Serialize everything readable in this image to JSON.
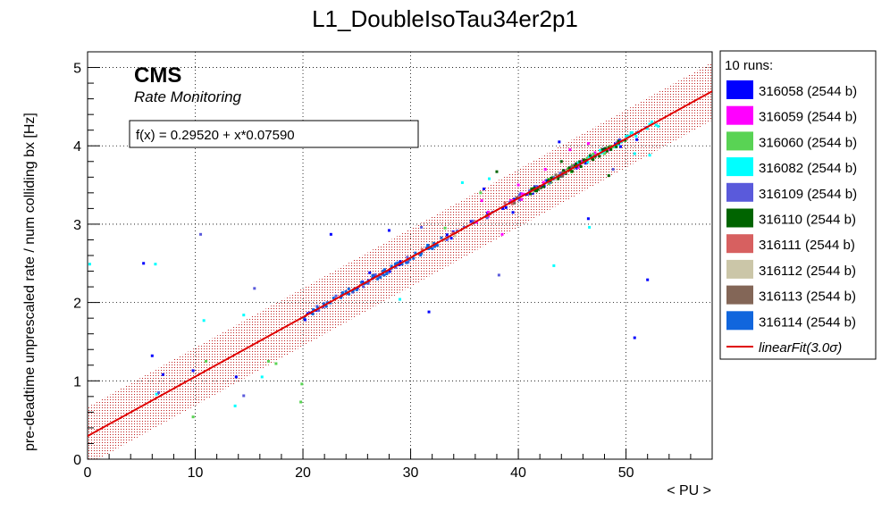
{
  "chart_data": {
    "type": "scatter",
    "title": "L1_DoubleIsoTau34er2p1",
    "xlabel": "< PU >",
    "ylabel": "pre-deadtime unprescaled rate / num colliding bx [Hz]",
    "xlim": [
      0,
      58
    ],
    "ylim": [
      0,
      5.2
    ],
    "x_ticks": [
      0,
      10,
      20,
      30,
      40,
      50
    ],
    "y_ticks": [
      0,
      1,
      2,
      3,
      4,
      5
    ],
    "grid": true,
    "legend_position": "right-outside",
    "cms_label": "CMS",
    "cms_sublabel": "Rate Monitoring",
    "fit_text": "f(x) = 0.29520 + x*0.07590",
    "fit": {
      "intercept": 0.2952,
      "slope": 0.0759,
      "band_sigma": 3.0,
      "band_halfwidth": 0.37,
      "x_range": [
        0,
        58
      ],
      "color": "#e00000"
    },
    "legend_header": "10 runs:",
    "fit_legend_label": "linearFit(3.0σ)",
    "series": [
      {
        "name": "316058 (2544 b)",
        "color": "#0000ff",
        "points": [
          [
            5.2,
            2.5
          ],
          [
            6.0,
            1.32
          ],
          [
            7.0,
            1.08
          ],
          [
            9.8,
            1.13
          ],
          [
            13.8,
            1.05
          ],
          [
            22.6,
            2.87
          ],
          [
            26.2,
            2.38
          ],
          [
            28.0,
            2.92
          ],
          [
            31.7,
            1.88
          ],
          [
            36.8,
            3.45
          ],
          [
            39.5,
            3.15
          ],
          [
            43.8,
            4.05
          ],
          [
            46.5,
            3.07
          ],
          [
            49.5,
            3.99
          ],
          [
            51.0,
            4.08
          ],
          [
            50.8,
            1.55
          ],
          [
            52.0,
            2.29
          ],
          [
            20.2,
            1.78
          ],
          [
            21.2,
            1.9
          ]
        ],
        "cloud": [
          20.0,
          52.0,
          50
        ]
      },
      {
        "name": "316059 (2544 b)",
        "color": "#ff00ff",
        "points": [
          [
            36.6,
            3.3
          ],
          [
            38.5,
            2.87
          ],
          [
            40.0,
            3.5
          ],
          [
            42.5,
            3.7
          ],
          [
            44.8,
            3.95
          ],
          [
            46.5,
            4.03
          ],
          [
            48.5,
            3.95
          ]
        ],
        "cloud": [
          36.0,
          50.0,
          22
        ]
      },
      {
        "name": "316060 (2544 b)",
        "color": "#59d354",
        "points": [
          [
            9.8,
            0.54
          ],
          [
            11.0,
            1.25
          ],
          [
            16.8,
            1.25
          ],
          [
            17.5,
            1.22
          ],
          [
            19.8,
            0.73
          ],
          [
            19.9,
            0.96
          ],
          [
            33.2,
            2.95
          ],
          [
            36.5,
            3.4
          ],
          [
            48.0,
            3.9
          ]
        ],
        "cloud": [
          42.0,
          50.5,
          22
        ]
      },
      {
        "name": "316082 (2544 b)",
        "color": "#00ffff",
        "points": [
          [
            0.2,
            2.49
          ],
          [
            6.3,
            2.49
          ],
          [
            6.4,
            0.83
          ],
          [
            10.8,
            1.77
          ],
          [
            13.7,
            0.68
          ],
          [
            14.5,
            1.84
          ],
          [
            16.2,
            1.05
          ],
          [
            29.0,
            2.04
          ],
          [
            34.8,
            3.53
          ],
          [
            37.3,
            3.58
          ],
          [
            43.3,
            2.47
          ],
          [
            46.6,
            2.96
          ],
          [
            50.8,
            3.9
          ],
          [
            52.2,
            3.88
          ],
          [
            53.0,
            4.25
          ]
        ],
        "cloud": [
          44.0,
          53.0,
          28
        ]
      },
      {
        "name": "316109 (2544 b)",
        "color": "#5a5adb",
        "points": [
          [
            10.5,
            2.87
          ],
          [
            15.5,
            2.18
          ],
          [
            14.5,
            0.81
          ],
          [
            6.6,
            0.85
          ],
          [
            38.2,
            2.35
          ],
          [
            31.0,
            2.96
          ],
          [
            48.8,
            3.7
          ]
        ],
        "cloud": [
          20.0,
          50.0,
          45
        ]
      },
      {
        "name": "316110 (2544 b)",
        "color": "#006400",
        "points": [
          [
            38.0,
            3.67
          ],
          [
            48.4,
            3.62
          ],
          [
            44.0,
            3.8
          ]
        ],
        "cloud": [
          41.0,
          50.0,
          45
        ]
      },
      {
        "name": "316111 (2544 b)",
        "color": "#d76060",
        "points": [],
        "cloud": [
          25.0,
          40.0,
          10
        ]
      },
      {
        "name": "316112 (2544 b)",
        "color": "#cbc6a8",
        "points": [],
        "cloud": [
          30.0,
          45.0,
          10
        ]
      },
      {
        "name": "316113 (2544 b)",
        "color": "#836657",
        "points": [],
        "cloud": [
          33.0,
          48.0,
          10
        ]
      },
      {
        "name": "316114 (2544 b)",
        "color": "#1166dd",
        "points": [],
        "cloud": [
          20.0,
          33.0,
          60
        ]
      }
    ]
  }
}
